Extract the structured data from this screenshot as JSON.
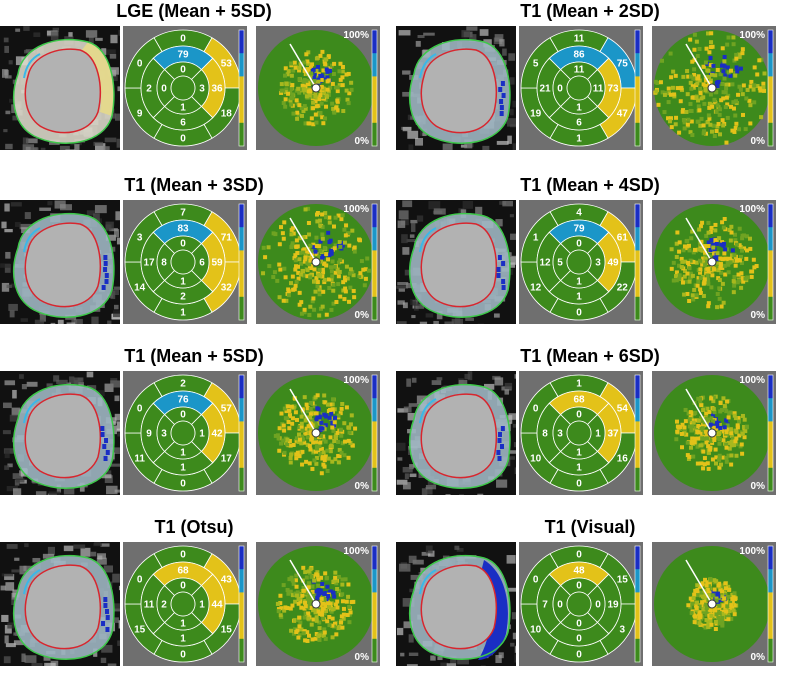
{
  "colors": {
    "green": "#3d8a1c",
    "yellow": "#e3c219",
    "blue": "#1a2ec4",
    "cyan": "#1b96c8",
    "white": "#ffffff"
  },
  "colorbar": {
    "top_label": "100%",
    "bottom_label": "0%"
  },
  "panels": [
    {
      "title": "LGE (Mean + 5SD)",
      "ring1": [
        "0",
        "53",
        "18",
        "0",
        "9",
        "0"
      ],
      "ring2": [
        "79",
        "36",
        "6",
        "2"
      ],
      "ring3": [
        "0",
        "3",
        "1",
        "0"
      ],
      "hi": {
        "ring1": [
          1,
          2
        ],
        "ring2": [
          1,
          1
        ],
        "ring2b": [
          1
        ],
        "cyan": []
      },
      "polar_extent": 0.55
    },
    {
      "title": "T1 (Mean + 2SD)",
      "ring1": [
        "11",
        "75",
        "47",
        "1",
        "19",
        "5"
      ],
      "ring2": [
        "86",
        "73",
        "6",
        "21"
      ],
      "ring3": [
        "11",
        "11",
        "1",
        "0"
      ],
      "hi": {},
      "polar_extent": 0.9
    },
    {
      "title": "T1 (Mean + 3SD)",
      "ring1": [
        "7",
        "71",
        "32",
        "1",
        "14",
        "3"
      ],
      "ring2": [
        "83",
        "59",
        "2",
        "17"
      ],
      "ring3": [
        "0",
        "6",
        "1",
        "8"
      ],
      "hi": {},
      "polar_extent": 0.85
    },
    {
      "title": "T1 (Mean + 4SD)",
      "ring1": [
        "4",
        "61",
        "22",
        "0",
        "12",
        "1"
      ],
      "ring2": [
        "79",
        "49",
        "1",
        "12"
      ],
      "ring3": [
        "0",
        "3",
        "1",
        "5"
      ],
      "hi": {},
      "polar_extent": 0.7
    },
    {
      "title": "T1 (Mean + 5SD)",
      "ring1": [
        "2",
        "57",
        "17",
        "0",
        "11",
        "0"
      ],
      "ring2": [
        "76",
        "42",
        "1",
        "9"
      ],
      "ring3": [
        "0",
        "1",
        "1",
        "3"
      ],
      "hi": {},
      "polar_extent": 0.62
    },
    {
      "title": "T1 (Mean + 6SD)",
      "ring1": [
        "1",
        "54",
        "16",
        "0",
        "10",
        "0"
      ],
      "ring2": [
        "68",
        "37",
        "1",
        "8"
      ],
      "ring3": [
        "0",
        "1",
        "1",
        "3"
      ],
      "hi": {},
      "polar_extent": 0.55
    },
    {
      "title": "T1 (Otsu)",
      "ring1": [
        "0",
        "43",
        "15",
        "0",
        "15",
        "0"
      ],
      "ring2": [
        "68",
        "44",
        "1",
        "11"
      ],
      "ring3": [
        "0",
        "1",
        "1",
        "2"
      ],
      "hi": {},
      "polar_extent": 0.58
    },
    {
      "title": "T1 (Visual)",
      "ring1": [
        "0",
        "15",
        "3",
        "0",
        "10",
        "0"
      ],
      "ring2": [
        "48",
        "19",
        "0",
        "7"
      ],
      "ring3": [
        "0",
        "0",
        "0",
        "0"
      ],
      "hi": {},
      "polar_extent": 0.35
    }
  ]
}
